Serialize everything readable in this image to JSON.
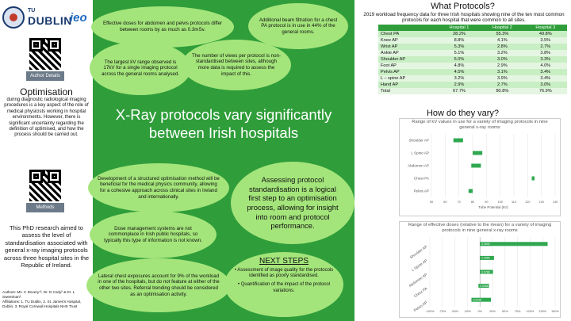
{
  "logos": {
    "tu_label": "TU",
    "dublin_label": "DUBLIN",
    "ieo_label": "ieo"
  },
  "left": {
    "qr1_label": "Author Details",
    "optimisation_title": "Optimisation",
    "optimisation_text": "during diagnostic radiological imaging procedures is a key aspect of the role of medical physicists working in hospital environments. However, there is significant uncertainty regarding the definition of optimised, and how the process should be carried out.",
    "qr2_label": "Methods",
    "phd_text": "This PhD research aimed to assess the level of standardisation associated with general x-ray imaging protocols across three hospital sites in the Republic of Ireland.",
    "authors": "Authors: Ms. C Devery¹², Dr. D Cody² & Dr. L Sweetman³.",
    "affiliations": "Affiliations: 1. TU Dublin, 2. St. James's Hospital, Dublin, 3. Royal Cornwall Hospitals NHS Trust"
  },
  "center": {
    "bubble_doses": "Effective doses for abdomen and pelvis protocols differ between rooms by as much as 0.3mSv.",
    "bubble_filtration": "Additional beam filtration for a chest PA protocol is in use in 44% of the general rooms.",
    "bubble_kv": "The largest kV range observed is 17kV for a single imaging protocol across the general rooms analysed.",
    "bubble_views": "The number of views per protocol is non-standardised between sites, although more data is required to assess the impact of this.",
    "title": "X-Ray protocols vary significantly between Irish hospitals",
    "bubble_development": "Development of a structured optimisation method will be beneficial for the medical physics community, allowing for a cohesive approach across clinical sites in Ireland and internationally.",
    "bubble_assessing": "Assessing protocol standardisation is a logical first step to an optimisation process, allowing for insight into room and protocol performance.",
    "bubble_dms": "Dose management systems are not commonplace in Irish public hospitals, so typically this type of information is not known.",
    "bubble_lateral": "Lateral chest exposures account for 9% of the workload in one of the hospitals, but do not feature at either of the other two sites. Referral trending should be considered as an optimisation activity.",
    "next_title": "NEXT STEPS",
    "next_items": [
      "Assessment of image quality for the protocols identified as poorly standardised.",
      "Quantification of the impact of the protocol variations."
    ]
  },
  "right": {
    "what_title": "What Protocols?",
    "what_subtitle": "2019 workload frequency data for three Irish hospitals showing nine of the ten most common protocols for each hospital that were common to all sites.",
    "table_headers": [
      "",
      "Hospital 1",
      "Hospital 2",
      "Hospital 3"
    ],
    "table_rows": [
      [
        "Chest PA",
        "28.2%",
        "55.3%",
        "49.8%"
      ],
      [
        "Knee AP",
        "8.8%",
        "4.1%",
        "3.5%"
      ],
      [
        "Wrist AP",
        "5.3%",
        "2.8%",
        "2.7%"
      ],
      [
        "Ankle AP",
        "5.1%",
        "3.2%",
        "3.8%"
      ],
      [
        "Shoulder AP",
        "5.0%",
        "3.0%",
        "3.3%"
      ],
      [
        "Foot AP",
        "4.8%",
        "2.9%",
        "4.0%"
      ],
      [
        "Pelvis AP",
        "4.5%",
        "3.1%",
        "3.4%"
      ],
      [
        "L – spine AP",
        "3.2%",
        "3.9%",
        "3.4%"
      ],
      [
        "Hand AP",
        "2.9%",
        "2.7%",
        "3.0%"
      ],
      [
        "Total",
        "67.7%",
        "80.8%",
        "76.9%"
      ]
    ],
    "how_title": "How do they vary?"
  },
  "chart_data": [
    {
      "type": "bar",
      "orientation": "horizontal",
      "title": "Range of kV values in use for a variety of imaging protocols in nine general x-ray rooms",
      "xlabel": "Tube Potential (kV)",
      "ylabel": "",
      "xlim": [
        50,
        140
      ],
      "xticks": [
        50,
        60,
        70,
        80,
        90,
        100,
        110,
        120,
        130,
        140
      ],
      "categories": [
        "Shoulder AP",
        "L Spine AP",
        "Abdomen AP",
        "Chest PA",
        "Pelvis AP"
      ],
      "ranges": [
        [
          66,
          73
        ],
        [
          80,
          87
        ],
        [
          79,
          86
        ],
        [
          123,
          125
        ],
        [
          77,
          80
        ]
      ],
      "grid": true
    },
    {
      "type": "bar",
      "orientation": "horizontal",
      "title": "Range of effective doses (relative to the mean) for a variety of imaging protocols in nine general x-ray rooms",
      "xlabel": "",
      "ylabel": "",
      "xlim": [
        -100,
        150
      ],
      "xticks": [
        -100,
        -75,
        -50,
        -25,
        0,
        25,
        50,
        75,
        100,
        125,
        150
      ],
      "xtick_labels": [
        "-100%",
        "-75%",
        "-50%",
        "-25%",
        "0%",
        "25%",
        "50%",
        "75%",
        "100%",
        "125%",
        "150%"
      ],
      "categories": [
        "Shoulder AP",
        "L Spine AP",
        "Abdomen AP",
        "Chest PA",
        "Pelvis AP"
      ],
      "ranges": [
        [
          0,
          135
        ],
        [
          0,
          28
        ],
        [
          0,
          26
        ],
        [
          -3,
          18
        ],
        [
          -17,
          22
        ]
      ],
      "range_labels": [
        "0.3000",
        "0.0986",
        "0.0788",
        "0.0068",
        "0.0148"
      ],
      "grid": true
    }
  ],
  "colors": {
    "center_bg": "#2f9e3a",
    "bubble": "#a4e57b",
    "bar": "#2fa84f",
    "table_header": "#2f9e3a"
  }
}
